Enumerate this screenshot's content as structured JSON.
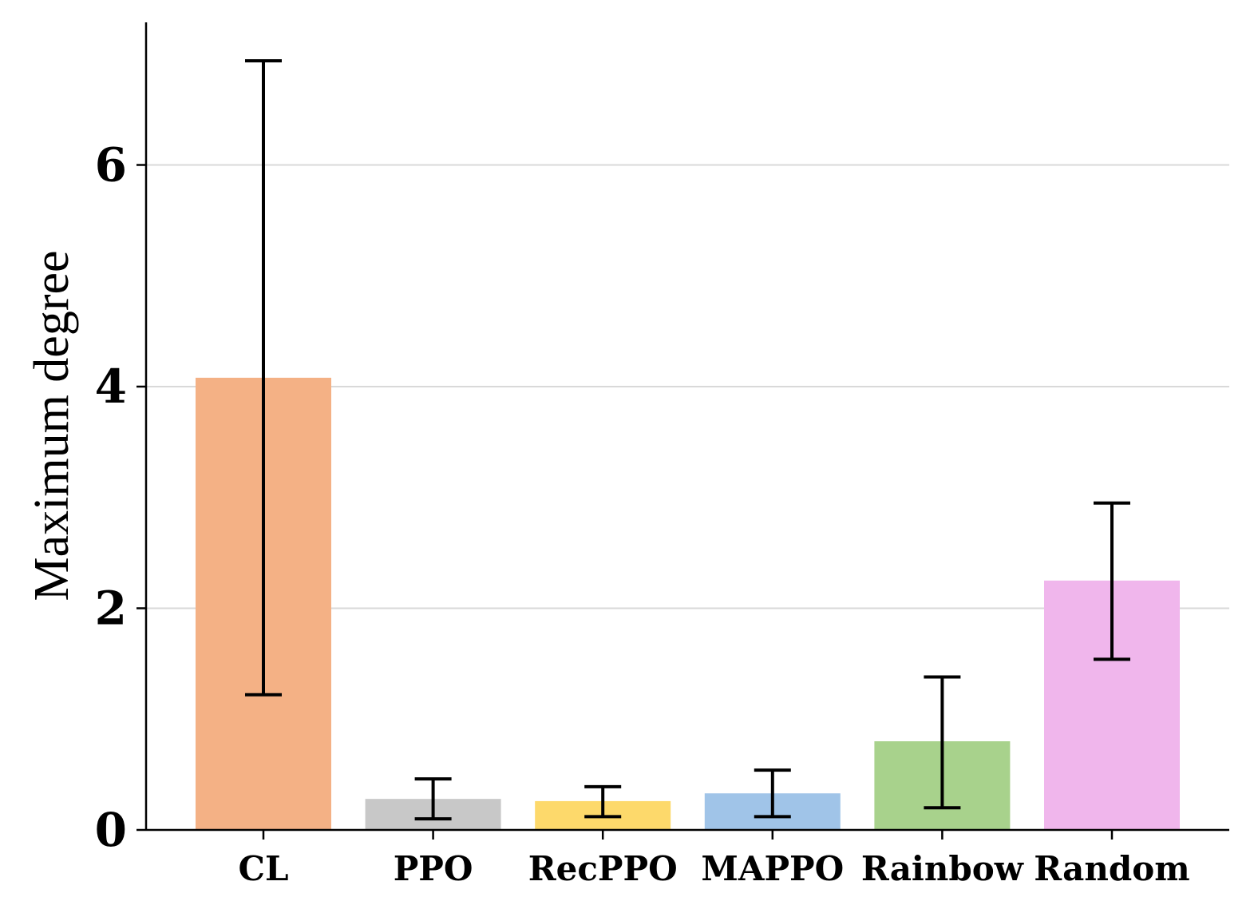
{
  "chart_data": {
    "type": "bar",
    "title": "",
    "xlabel": "",
    "ylabel": "Maximum degree",
    "ylim": [
      0,
      7.3
    ],
    "yticks": [
      0,
      2,
      4,
      6
    ],
    "ytick_labels": [
      "0",
      "2",
      "4",
      "6"
    ],
    "grid": "horizontal",
    "categories": [
      "CL",
      "PPO",
      "RecPPO",
      "MAPPO",
      "Rainbow",
      "Random"
    ],
    "values": [
      4.08,
      0.28,
      0.26,
      0.33,
      0.8,
      2.25
    ],
    "error_low": [
      1.22,
      0.1,
      0.12,
      0.12,
      0.2,
      1.54
    ],
    "error_high": [
      6.94,
      0.46,
      0.39,
      0.54,
      1.38,
      2.95
    ],
    "colors": [
      "#f4b185",
      "#c8c8c8",
      "#fdd96b",
      "#a0c4e8",
      "#a8d28c",
      "#f0b6ec"
    ]
  }
}
